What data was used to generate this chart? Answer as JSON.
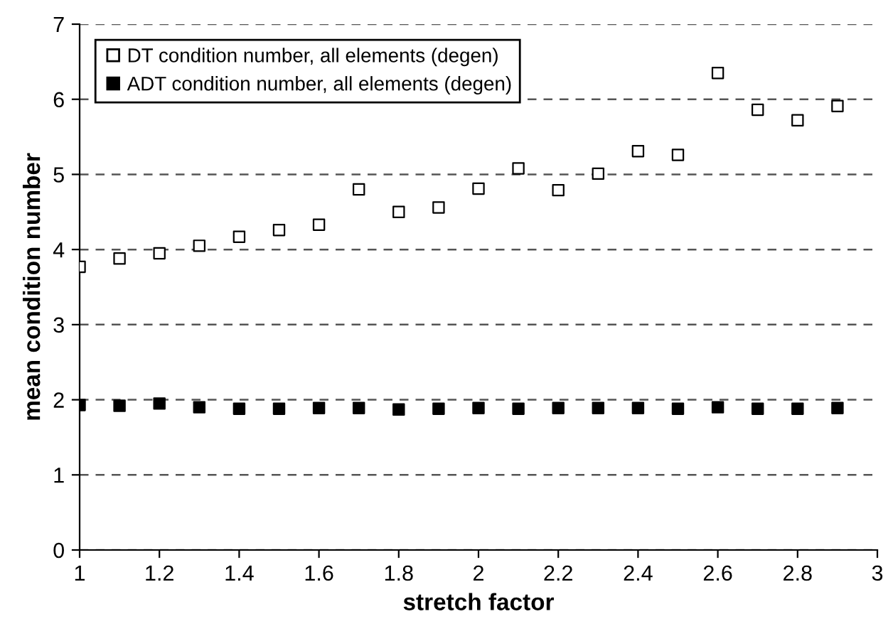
{
  "chart_data": {
    "type": "scatter",
    "xlabel": "stretch factor",
    "ylabel": "mean condition number",
    "x": [
      1,
      1.1,
      1.2,
      1.3,
      1.4,
      1.5,
      1.6,
      1.7,
      1.8,
      1.9,
      2,
      2.1,
      2.2,
      2.3,
      2.4,
      2.5,
      2.6,
      2.7,
      2.8,
      2.9
    ],
    "series": [
      {
        "name": "DT condition number, all elements (degen)",
        "color": "#ffffff",
        "values": [
          3.77,
          3.88,
          3.95,
          4.05,
          4.17,
          4.26,
          4.33,
          4.8,
          4.5,
          4.56,
          4.81,
          5.08,
          4.79,
          5.01,
          5.31,
          5.26,
          6.35,
          5.86,
          5.72,
          5.91
        ]
      },
      {
        "name": "ADT condition number, all elements (degen)",
        "color": "#000000",
        "values": [
          1.93,
          1.92,
          1.95,
          1.9,
          1.88,
          1.88,
          1.89,
          1.89,
          1.87,
          1.88,
          1.89,
          1.88,
          1.89,
          1.89,
          1.89,
          1.88,
          1.9,
          1.88,
          1.88,
          1.89
        ]
      }
    ],
    "xlim": [
      1,
      3
    ],
    "xticks": [
      1,
      1.2,
      1.4,
      1.6,
      1.8,
      2,
      2.2,
      2.4,
      2.6,
      2.8,
      3
    ],
    "ylim": [
      0,
      7
    ],
    "yticks": [
      0,
      1,
      2,
      3,
      4,
      5,
      6,
      7
    ],
    "grid": "y",
    "legend": "top left",
    "marker": "square"
  }
}
